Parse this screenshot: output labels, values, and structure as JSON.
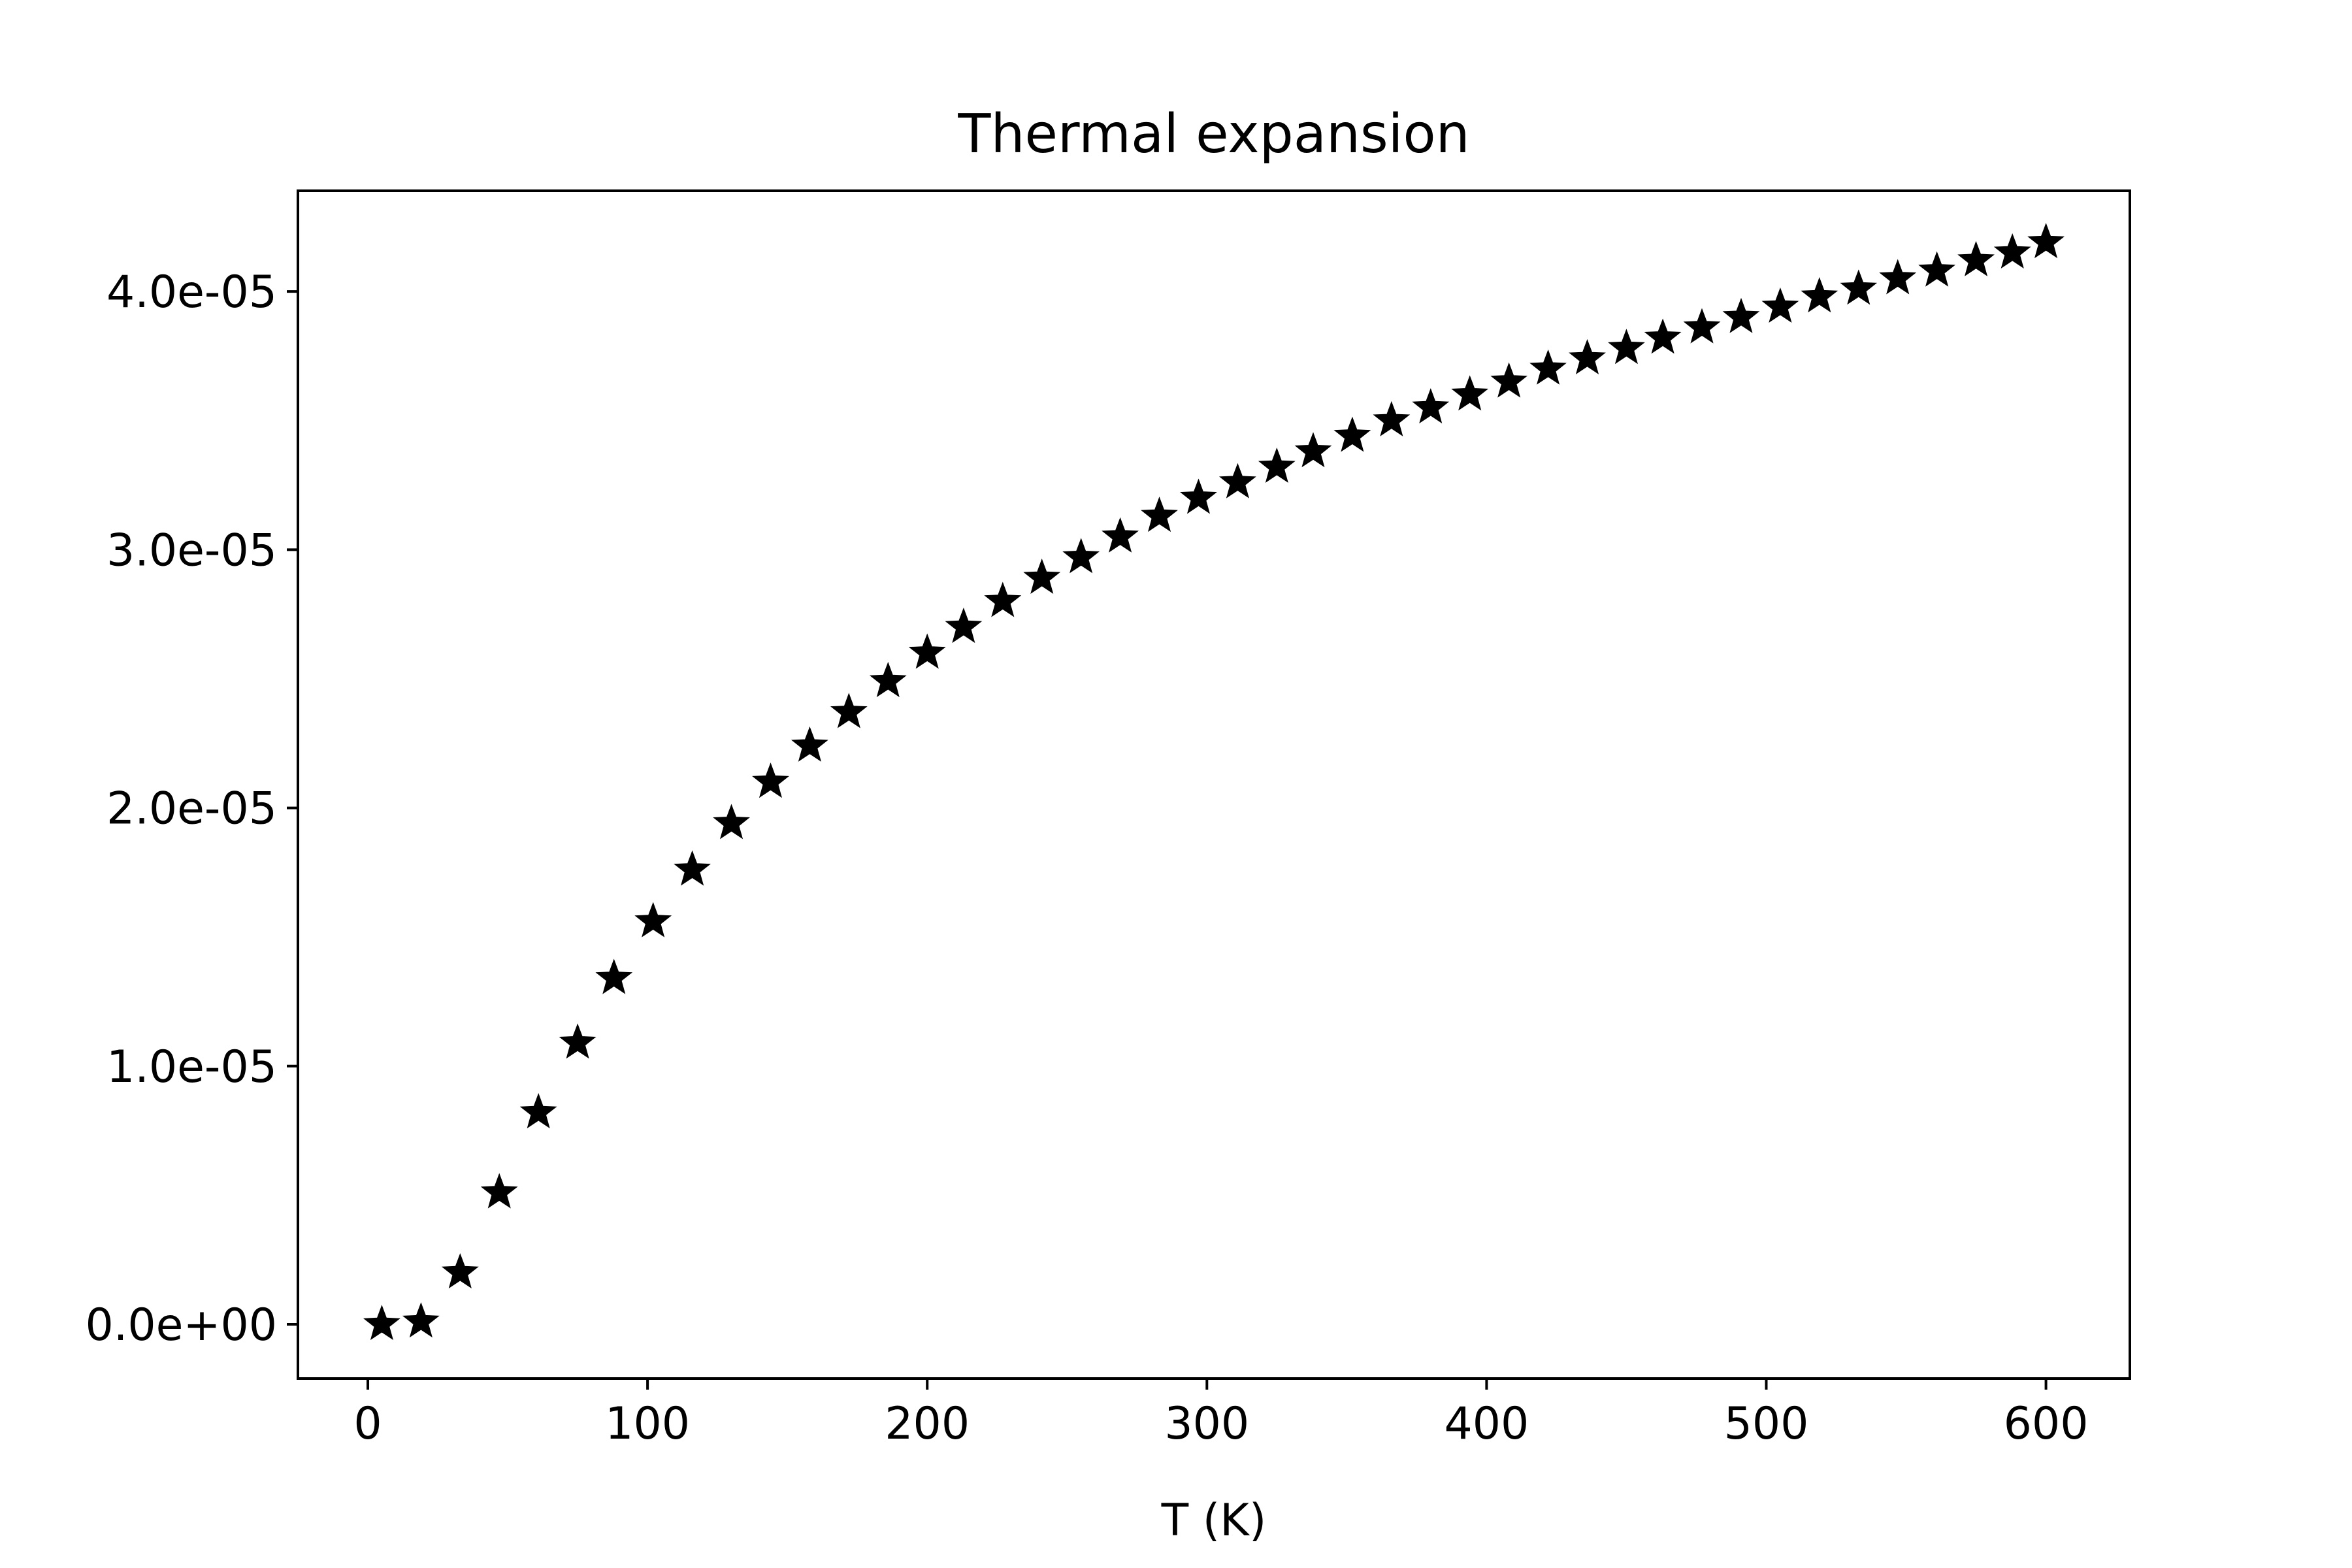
{
  "chart_data": {
    "type": "scatter",
    "title": "Thermal expansion",
    "xlabel": "T (K)",
    "ylabel": "",
    "marker": "star",
    "marker_color": "#000000",
    "grid": false,
    "xlim": [
      -25,
      630
    ],
    "ylim": [
      -2.1e-06,
      4.39e-05
    ],
    "x_ticks": [
      0,
      100,
      200,
      300,
      400,
      500,
      600
    ],
    "x_tick_labels": [
      "0",
      "100",
      "200",
      "300",
      "400",
      "500",
      "600"
    ],
    "y_ticks": [
      0,
      1e-05,
      2e-05,
      3e-05,
      4e-05
    ],
    "y_tick_labels": [
      "0.0e+00",
      "1.0e-05",
      "2.0e-05",
      "3.0e-05",
      "4.0e-05"
    ],
    "x": [
      5,
      19,
      33,
      47,
      61,
      75,
      88,
      102,
      116,
      130,
      144,
      158,
      172,
      186,
      200,
      213,
      227,
      241,
      255,
      269,
      283,
      297,
      311,
      325,
      338,
      352,
      366,
      380,
      394,
      408,
      422,
      436,
      450,
      463,
      477,
      491,
      505,
      519,
      533,
      547,
      561,
      575,
      588,
      600
    ],
    "y": [
      0.0,
      1e-07,
      2e-06,
      5.1e-06,
      8.2e-06,
      1.09e-05,
      1.34e-05,
      1.56e-05,
      1.76e-05,
      1.94e-05,
      2.1e-05,
      2.24e-05,
      2.37e-05,
      2.49e-05,
      2.6e-05,
      2.7e-05,
      2.8e-05,
      2.89e-05,
      2.97e-05,
      3.05e-05,
      3.13e-05,
      3.2e-05,
      3.26e-05,
      3.32e-05,
      3.38e-05,
      3.44e-05,
      3.5e-05,
      3.55e-05,
      3.6e-05,
      3.65e-05,
      3.7e-05,
      3.74e-05,
      3.78e-05,
      3.82e-05,
      3.86e-05,
      3.9e-05,
      3.94e-05,
      3.98e-05,
      4.01e-05,
      4.05e-05,
      4.08e-05,
      4.12e-05,
      4.15e-05,
      4.19e-05
    ]
  }
}
